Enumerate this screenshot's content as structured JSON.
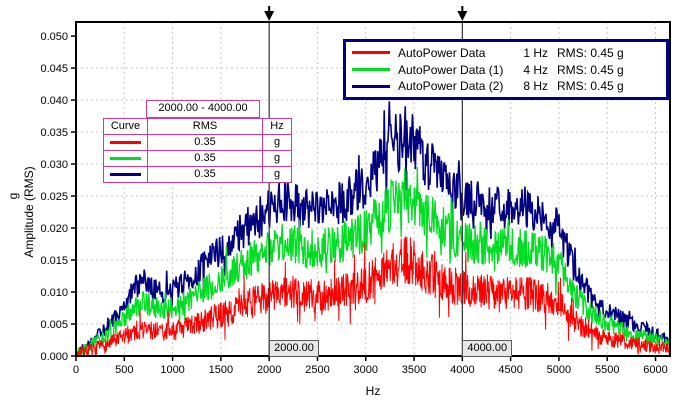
{
  "colors": {
    "background": "#ffffff",
    "plot_frame": "#000000",
    "grid": "#c8c8c8",
    "cursor_line": "#333333",
    "cursor_box_bg": "#e8e8e8",
    "cursor_box_border": "#5a5a5a",
    "legend_border": "#000080",
    "table_border": "#cc3d99",
    "series_red": "#ff0000",
    "series_green": "#00dd22",
    "series_blue": "#000080"
  },
  "icons": {
    "cursor_flag": "triangle-down-flag",
    "legend_swatch": "horizontal-line-swatch",
    "curve_swatch": "horizontal-line-swatch"
  },
  "chart_data": {
    "type": "line",
    "title": "",
    "xlabel": "Hz",
    "ylabel": "Amplitude (RMS)",
    "ylabel_units": "g",
    "xlim": [
      0,
      6150
    ],
    "ylim": [
      0,
      0.0522
    ],
    "grid": true,
    "legend_position": "top-right",
    "x_ticks": [
      0,
      500,
      1000,
      1500,
      2000,
      2500,
      3000,
      3500,
      4000,
      4500,
      5000,
      5500,
      6000
    ],
    "x_tick_labels": [
      "0",
      "500",
      "1000",
      "1500",
      "2000",
      "2500",
      "3000",
      "3500",
      "4000",
      "4500",
      "5000",
      "5500",
      "6000"
    ],
    "y_ticks": [
      0,
      0.005,
      0.01,
      0.015,
      0.02,
      0.025,
      0.03,
      0.035,
      0.04,
      0.045,
      0.05
    ],
    "y_tick_labels": [
      "0.000",
      "0.005",
      "0.010",
      "0.015",
      "0.020",
      "0.025",
      "0.030",
      "0.035",
      "0.040",
      "0.045",
      "0.050"
    ],
    "series": [
      {
        "name": "AutoPower Data",
        "frequency_resolution": "1 Hz",
        "rms": "RMS: 0.45 g",
        "color": "#ff0000",
        "points": 1400,
        "noise_rel": 0.2,
        "noise_abs": 0.0008,
        "spike_prob": 0.05,
        "spike_mult": 2.1,
        "stroke_width": 1.0,
        "seed": 7,
        "envelope": [
          [
            0,
            0.0003
          ],
          [
            150,
            0.0009
          ],
          [
            300,
            0.0016
          ],
          [
            450,
            0.0026
          ],
          [
            600,
            0.0039
          ],
          [
            700,
            0.0042
          ],
          [
            800,
            0.0039
          ],
          [
            950,
            0.0038
          ],
          [
            1100,
            0.0043
          ],
          [
            1250,
            0.005
          ],
          [
            1400,
            0.0059
          ],
          [
            1600,
            0.007
          ],
          [
            1800,
            0.0082
          ],
          [
            2000,
            0.0094
          ],
          [
            2100,
            0.0099
          ],
          [
            2250,
            0.0098
          ],
          [
            2400,
            0.0094
          ],
          [
            2550,
            0.0095
          ],
          [
            2700,
            0.0098
          ],
          [
            2850,
            0.0104
          ],
          [
            3000,
            0.0113
          ],
          [
            3150,
            0.0127
          ],
          [
            3300,
            0.0142
          ],
          [
            3400,
            0.015
          ],
          [
            3500,
            0.0145
          ],
          [
            3600,
            0.0133
          ],
          [
            3750,
            0.012
          ],
          [
            3900,
            0.011
          ],
          [
            4050,
            0.0103
          ],
          [
            4200,
            0.01
          ],
          [
            4400,
            0.0099
          ],
          [
            4600,
            0.0098
          ],
          [
            4750,
            0.0096
          ],
          [
            4900,
            0.009
          ],
          [
            5000,
            0.0081
          ],
          [
            5100,
            0.0066
          ],
          [
            5200,
            0.005
          ],
          [
            5350,
            0.0037
          ],
          [
            5500,
            0.0028
          ],
          [
            5650,
            0.0023
          ],
          [
            5800,
            0.0019
          ],
          [
            5950,
            0.0015
          ],
          [
            6100,
            0.0012
          ],
          [
            6150,
            0.0011
          ]
        ]
      },
      {
        "name": "AutoPower Data (1)",
        "frequency_resolution": "4 Hz",
        "rms": "RMS: 0.45 g",
        "color": "#00dd22",
        "points": 1000,
        "noise_rel": 0.14,
        "noise_abs": 0.0007,
        "spike_prob": 0.05,
        "spike_mult": 1.9,
        "stroke_width": 1.3,
        "seed": 13,
        "envelope": [
          [
            0,
            0.0004
          ],
          [
            150,
            0.0016
          ],
          [
            300,
            0.0031
          ],
          [
            450,
            0.005
          ],
          [
            600,
            0.0077
          ],
          [
            700,
            0.0084
          ],
          [
            800,
            0.0077
          ],
          [
            950,
            0.0073
          ],
          [
            1100,
            0.0082
          ],
          [
            1250,
            0.0095
          ],
          [
            1400,
            0.011
          ],
          [
            1600,
            0.013
          ],
          [
            1800,
            0.015
          ],
          [
            2000,
            0.0167
          ],
          [
            2100,
            0.0175
          ],
          [
            2250,
            0.0174
          ],
          [
            2400,
            0.0167
          ],
          [
            2550,
            0.0168
          ],
          [
            2700,
            0.0174
          ],
          [
            2850,
            0.0184
          ],
          [
            3000,
            0.0197
          ],
          [
            3150,
            0.0219
          ],
          [
            3300,
            0.0241
          ],
          [
            3400,
            0.0252
          ],
          [
            3500,
            0.0245
          ],
          [
            3600,
            0.0226
          ],
          [
            3750,
            0.0206
          ],
          [
            3900,
            0.0188
          ],
          [
            4050,
            0.0177
          ],
          [
            4200,
            0.0172
          ],
          [
            4400,
            0.0171
          ],
          [
            4600,
            0.0169
          ],
          [
            4750,
            0.0166
          ],
          [
            4900,
            0.0157
          ],
          [
            5000,
            0.0142
          ],
          [
            5100,
            0.0117
          ],
          [
            5200,
            0.0089
          ],
          [
            5350,
            0.0066
          ],
          [
            5500,
            0.0051
          ],
          [
            5650,
            0.0042
          ],
          [
            5800,
            0.0034
          ],
          [
            5950,
            0.0028
          ],
          [
            6100,
            0.0022
          ],
          [
            6150,
            0.002
          ]
        ]
      },
      {
        "name": "AutoPower Data (2)",
        "frequency_resolution": "8 Hz",
        "rms": "RMS: 0.45 g",
        "color": "#000080",
        "points": 820,
        "noise_rel": 0.12,
        "noise_abs": 0.0007,
        "spike_prob": 0.05,
        "spike_mult": 1.8,
        "stroke_width": 1.6,
        "seed": 29,
        "envelope": [
          [
            0,
            0.0005
          ],
          [
            150,
            0.0022
          ],
          [
            300,
            0.0042
          ],
          [
            450,
            0.0068
          ],
          [
            600,
            0.0105
          ],
          [
            700,
            0.0115
          ],
          [
            800,
            0.0105
          ],
          [
            950,
            0.01
          ],
          [
            1100,
            0.0112
          ],
          [
            1250,
            0.013
          ],
          [
            1400,
            0.015
          ],
          [
            1600,
            0.0178
          ],
          [
            1800,
            0.0205
          ],
          [
            2000,
            0.0228
          ],
          [
            2100,
            0.024
          ],
          [
            2250,
            0.0238
          ],
          [
            2400,
            0.0228
          ],
          [
            2550,
            0.023
          ],
          [
            2700,
            0.0238
          ],
          [
            2850,
            0.0252
          ],
          [
            3000,
            0.027
          ],
          [
            3150,
            0.03
          ],
          [
            3300,
            0.033
          ],
          [
            3400,
            0.0345
          ],
          [
            3500,
            0.0335
          ],
          [
            3600,
            0.031
          ],
          [
            3750,
            0.0282
          ],
          [
            3900,
            0.0258
          ],
          [
            4050,
            0.0242
          ],
          [
            4200,
            0.0236
          ],
          [
            4400,
            0.0234
          ],
          [
            4600,
            0.0232
          ],
          [
            4750,
            0.0228
          ],
          [
            4900,
            0.0215
          ],
          [
            5000,
            0.0195
          ],
          [
            5100,
            0.016
          ],
          [
            5200,
            0.0122
          ],
          [
            5350,
            0.009
          ],
          [
            5500,
            0.007
          ],
          [
            5650,
            0.0057
          ],
          [
            5800,
            0.0047
          ],
          [
            5950,
            0.0038
          ],
          [
            6100,
            0.003
          ],
          [
            6150,
            0.0027
          ]
        ]
      }
    ],
    "cursors": [
      {
        "x": 2000,
        "label": "2000.00"
      },
      {
        "x": 4000,
        "label": "4000.00"
      }
    ],
    "band_table": {
      "range_label": "2000.00 - 4000.00",
      "columns": [
        "Curve",
        "RMS",
        "Hz"
      ],
      "rows": [
        {
          "curve_color": "#ff0000",
          "rms": "0.35",
          "unit": "g"
        },
        {
          "curve_color": "#00dd22",
          "rms": "0.35",
          "unit": "g"
        },
        {
          "curve_color": "#000080",
          "rms": "0.35",
          "unit": "g"
        }
      ]
    }
  }
}
